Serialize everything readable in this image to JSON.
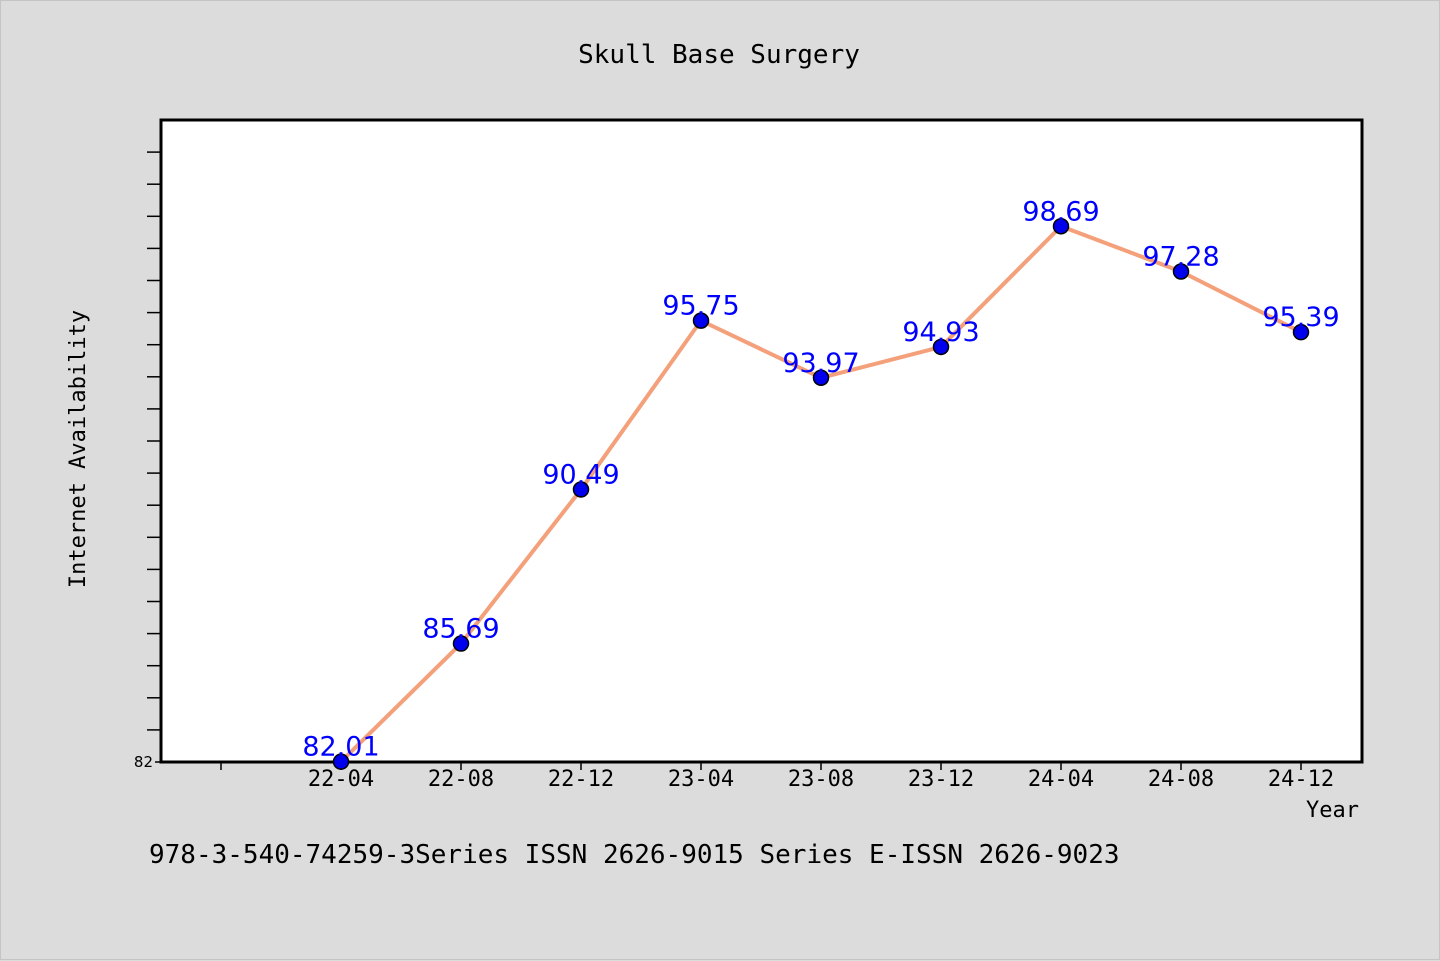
{
  "colors": {
    "background": "#dcdcdc",
    "plot_background": "#ffffff",
    "line": "#f4a07a",
    "marker": "#0000ee",
    "data_label": "#0000ff"
  },
  "footer_text": "978-3-540-74259-3Series ISSN 2626-9015 Series E-ISSN 2626-9023",
  "chart_data": {
    "type": "line",
    "title": "Skull Base Surgery",
    "xlabel": "Year",
    "ylabel": "Internet Availability",
    "categories": [
      "22-04",
      "22-08",
      "22-12",
      "23-04",
      "23-08",
      "23-12",
      "24-04",
      "24-08",
      "24-12"
    ],
    "series": [
      {
        "values": [
          82.01,
          85.69,
          90.49,
          95.75,
          93.97,
          94.93,
          98.69,
          97.28,
          95.39
        ]
      }
    ],
    "data_labels": [
      "82.01",
      "85.69",
      "90.49",
      "95.75",
      "93.97",
      "94.93",
      "98.69",
      "97.28",
      "95.39"
    ],
    "ytick_labels": [
      "82"
    ],
    "ylim": [
      82,
      102
    ],
    "grid": false,
    "legend": "none"
  }
}
